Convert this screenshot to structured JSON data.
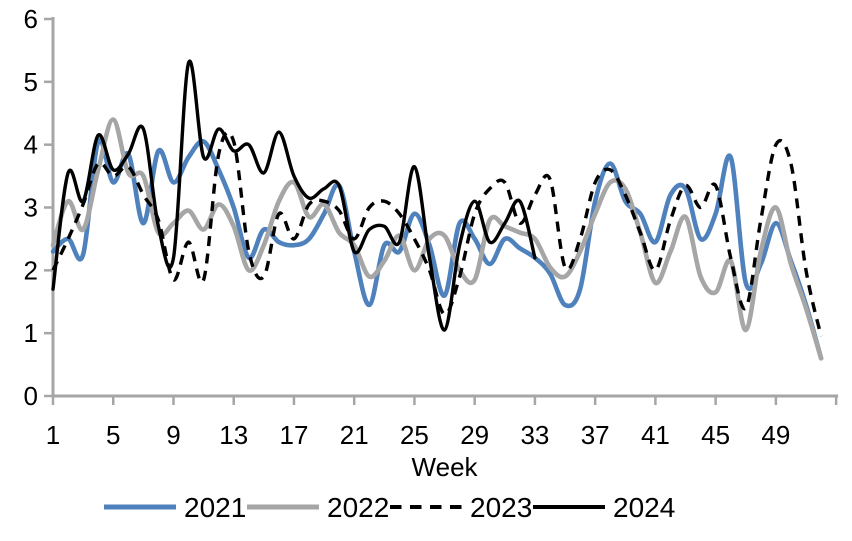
{
  "chart_data": {
    "type": "line",
    "title": "",
    "xlabel": "Week",
    "ylabel": "",
    "ylim": [
      0,
      6
    ],
    "yticks": [
      0,
      1,
      2,
      3,
      4,
      5,
      6
    ],
    "xticks": [
      1,
      5,
      9,
      13,
      17,
      21,
      25,
      29,
      33,
      37,
      41,
      45,
      49
    ],
    "x_axis_end_week": 53,
    "grid": false,
    "legend_position": "bottom",
    "axis_color": "#a6a6a6",
    "text_color": "#000000",
    "series": [
      {
        "name": "2021",
        "color": "#4f81bd",
        "style": "solid",
        "start_week": 1,
        "values": [
          2.3,
          2.5,
          2.25,
          4.05,
          3.4,
          3.85,
          2.75,
          3.9,
          3.4,
          3.8,
          4.05,
          3.6,
          3.0,
          2.2,
          2.65,
          2.45,
          2.4,
          2.5,
          2.9,
          3.35,
          2.3,
          1.45,
          2.4,
          2.3,
          2.9,
          2.4,
          1.6,
          2.75,
          2.5,
          2.1,
          2.5,
          2.35,
          2.2,
          1.95,
          1.45,
          1.7,
          3.1,
          3.7,
          3.1,
          2.9,
          2.45,
          3.2,
          3.3,
          2.5,
          2.9,
          3.8,
          1.8,
          2.1,
          2.75,
          2.15,
          1.45,
          0.6
        ]
      },
      {
        "name": "2022",
        "color": "#a6a6a6",
        "style": "solid",
        "start_week": 1,
        "values": [
          2.4,
          3.1,
          2.65,
          3.6,
          4.4,
          3.55,
          3.5,
          2.6,
          2.75,
          2.95,
          2.65,
          3.05,
          2.7,
          2.0,
          2.4,
          3.1,
          3.4,
          2.85,
          3.05,
          2.6,
          2.4,
          1.9,
          2.15,
          2.55,
          2.0,
          2.5,
          2.55,
          2.0,
          1.85,
          2.8,
          2.7,
          2.6,
          2.5,
          2.05,
          1.9,
          2.3,
          2.9,
          3.4,
          3.3,
          2.6,
          1.8,
          2.3,
          2.85,
          1.9,
          1.65,
          2.15,
          1.05,
          2.3,
          3.0,
          2.1,
          1.4,
          0.6
        ]
      },
      {
        "name": "2023",
        "color": "#000000",
        "style": "dashed",
        "start_week": 1,
        "values": [
          2.0,
          2.5,
          3.05,
          3.7,
          3.5,
          3.65,
          3.2,
          2.8,
          1.85,
          2.45,
          1.85,
          3.85,
          4.05,
          2.3,
          1.9,
          2.9,
          2.5,
          3.05,
          3.1,
          2.95,
          2.5,
          3.0,
          3.1,
          2.9,
          2.5,
          2.0,
          1.3,
          1.9,
          2.9,
          3.3,
          3.4,
          2.75,
          3.2,
          3.45,
          2.05,
          2.5,
          3.4,
          3.6,
          3.2,
          2.6,
          2.0,
          2.8,
          3.35,
          3.0,
          3.35,
          2.2,
          1.4,
          2.8,
          4.0,
          3.7,
          2.0,
          0.95
        ]
      },
      {
        "name": "2024",
        "color": "#000000",
        "style": "solid",
        "start_week": 1,
        "values": [
          1.7,
          3.55,
          3.1,
          4.15,
          3.6,
          3.85,
          4.25,
          2.7,
          2.2,
          5.3,
          3.8,
          4.25,
          3.9,
          4.0,
          3.55,
          4.2,
          3.5,
          3.15,
          3.3,
          3.35,
          2.3,
          2.65,
          2.7,
          2.45,
          3.65,
          2.2,
          1.05,
          2.4,
          3.1,
          2.45,
          2.75,
          3.1,
          2.2
        ]
      }
    ]
  }
}
